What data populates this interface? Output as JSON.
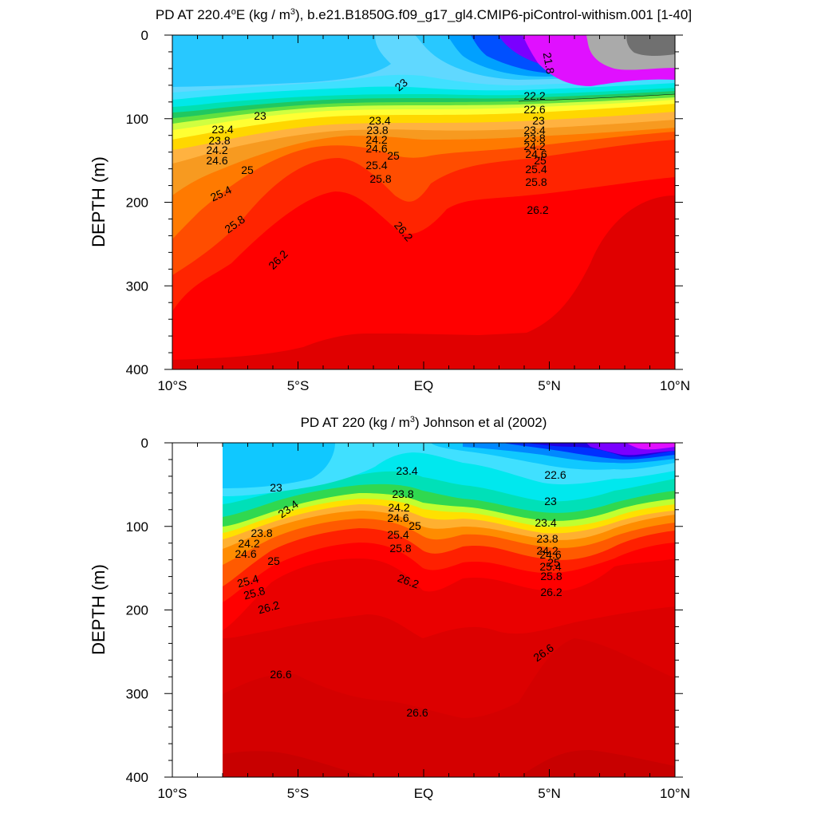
{
  "panels": [
    {
      "title_html": "PD AT 220.4<tspan baseline-shift=\"super\" font-size=\"11\">o</tspan>E (kg / m<tspan baseline-shift=\"super\" font-size=\"11\">3</tspan>), b.e21.B1850G.f09_g17_gl4.CMIP6-piControl-withism.001 [1-40]",
      "ylabel": "DEPTH (m)"
    },
    {
      "title_html": "PD AT 220 (kg / m<tspan baseline-shift=\"super\" font-size=\"11\">3</tspan>) Johnson et al (2002)",
      "ylabel": "DEPTH (m)"
    }
  ],
  "chart_data": [
    {
      "type": "heatmap",
      "title": "PD AT 220.4°E (kg / m3), b.e21.B1850G.f09_g17_gl4.CMIP6-piControl-withism.001 [1-40]",
      "xlabel": "",
      "ylabel": "DEPTH (m)",
      "xlim": [
        -10,
        10
      ],
      "ylim": [
        400,
        0
      ],
      "xticks": [
        -10,
        -5,
        0,
        5,
        10
      ],
      "xticklabels": [
        "10°S",
        "5°S",
        "EQ",
        "5°N",
        "10°N"
      ],
      "yticks": [
        0,
        100,
        200,
        300,
        400
      ],
      "yticklabels": [
        "0",
        "100",
        "200",
        "300",
        "400"
      ],
      "x_start": -10,
      "contour_labels": [
        "21.8",
        "22.2",
        "22.6",
        "23",
        "23.4",
        "23.8",
        "24.2",
        "24.6",
        "25",
        "25.4",
        "25.8",
        "26.2"
      ],
      "isopycnal_depths": [
        {
          "level": 23.0,
          "x": [
            -10,
            -6,
            -3,
            -1,
            0,
            3,
            5,
            8,
            10
          ],
          "depth": [
            80,
            88,
            80,
            60,
            45,
            60,
            85,
            88,
            85
          ]
        },
        {
          "level": 23.4,
          "x": [
            -10,
            -6,
            -3,
            -1,
            0,
            3,
            5,
            8,
            10
          ],
          "depth": [
            108,
            112,
            108,
            104,
            104,
            106,
            110,
            112,
            112
          ]
        },
        {
          "level": 24.2,
          "x": [
            -10,
            -6,
            -3,
            -1,
            0,
            3,
            5,
            8,
            10
          ],
          "depth": [
            130,
            132,
            130,
            128,
            128,
            129,
            131,
            132,
            132
          ]
        },
        {
          "level": 25.0,
          "x": [
            -10,
            -6,
            -3,
            -1,
            0,
            3,
            5,
            8,
            10
          ],
          "depth": [
            152,
            152,
            148,
            145,
            146,
            148,
            152,
            154,
            155
          ]
        },
        {
          "level": 25.8,
          "x": [
            -10,
            -6,
            -3,
            -1,
            0,
            3,
            5,
            8,
            10
          ],
          "depth": [
            205,
            195,
            180,
            175,
            185,
            185,
            180,
            178,
            178
          ]
        },
        {
          "level": 26.2,
          "x": [
            -10,
            -7,
            -5,
            -3,
            -1,
            0,
            1,
            3,
            5,
            8,
            10
          ],
          "depth": [
            290,
            270,
            230,
            200,
            225,
            250,
            232,
            205,
            195,
            180,
            172
          ]
        },
        {
          "level": 26.4,
          "x": [
            -10,
            -7,
            -5,
            -3,
            -1,
            0,
            3,
            5,
            8,
            10
          ],
          "depth": [
            330,
            320,
            300,
            285,
            290,
            295,
            295,
            290,
            275,
            268
          ]
        },
        {
          "level": 26.6,
          "x": [
            -10,
            -7,
            -5,
            -3,
            -1,
            0,
            3,
            4,
            6,
            8,
            10
          ],
          "depth": [
            392,
            385,
            375,
            358,
            355,
            356,
            357,
            350,
            310,
            265,
            245
          ]
        }
      ]
    },
    {
      "type": "heatmap",
      "title": "PD AT 220 (kg / m3) Johnson et al (2002)",
      "xlabel": "",
      "ylabel": "DEPTH (m)",
      "xlim": [
        -10,
        10
      ],
      "ylim": [
        400,
        0
      ],
      "xticks": [
        -10,
        -5,
        0,
        5,
        10
      ],
      "xticklabels": [
        "10°S",
        "5°S",
        "EQ",
        "5°N",
        "10°N"
      ],
      "yticks": [
        0,
        100,
        200,
        300,
        400
      ],
      "yticklabels": [
        "0",
        "100",
        "200",
        "300",
        "400"
      ],
      "x_start": -8,
      "contour_labels": [
        "22.6",
        "23",
        "23.4",
        "23.8",
        "24.2",
        "24.6",
        "25",
        "25.4",
        "25.8",
        "26.2",
        "26.6"
      ],
      "isopycnal_depths": [
        {
          "level": 23.0,
          "x": [
            -8,
            -5,
            -2,
            -1,
            0,
            3,
            5,
            8,
            10
          ],
          "depth": [
            60,
            55,
            30,
            15,
            20,
            60,
            75,
            50,
            40
          ]
        },
        {
          "level": 23.4,
          "x": [
            -8,
            -5,
            -2,
            -1,
            0,
            3,
            5,
            8,
            10
          ],
          "depth": [
            105,
            95,
            70,
            55,
            65,
            90,
            100,
            75,
            60
          ]
        },
        {
          "level": 24.2,
          "x": [
            -8,
            -5,
            -2,
            -1,
            0,
            3,
            5,
            8,
            10
          ],
          "depth": [
            125,
            118,
            90,
            80,
            85,
            120,
            132,
            110,
            90
          ]
        },
        {
          "level": 25.0,
          "x": [
            -8,
            -5,
            -2,
            -1,
            0,
            3,
            5,
            8,
            10
          ],
          "depth": [
            145,
            138,
            105,
            100,
            112,
            142,
            152,
            130,
            110
          ]
        },
        {
          "level": 26.2,
          "x": [
            -8,
            -5,
            -3,
            -1,
            0,
            1,
            3,
            5,
            8,
            10
          ],
          "depth": [
            237,
            210,
            150,
            140,
            170,
            180,
            150,
            165,
            155,
            145
          ]
        },
        {
          "level": 26.6,
          "x": [
            -8,
            -5,
            -3,
            -1,
            0,
            2,
            4,
            6,
            8,
            10
          ],
          "depth": [
            298,
            285,
            270,
            305,
            325,
            320,
            300,
            255,
            235,
            230
          ]
        },
        {
          "level": 26.8,
          "x": [
            -8,
            -6,
            -3,
            -1,
            0,
            2,
            4,
            6,
            8,
            10
          ],
          "depth": [
            375,
            368,
            385,
            395,
            400,
            400,
            395,
            368,
            370,
            380
          ]
        }
      ]
    }
  ]
}
